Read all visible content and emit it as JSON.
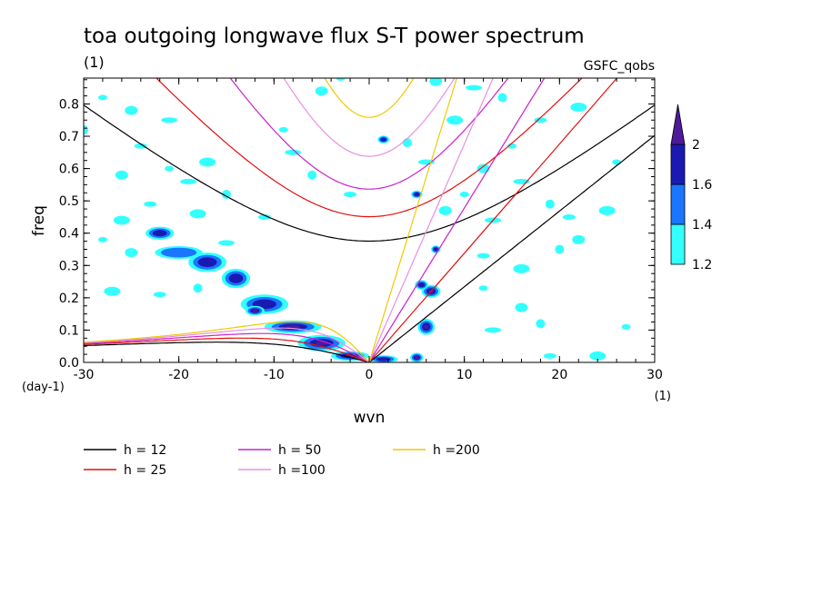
{
  "chart_data": {
    "type": "heatmap",
    "title": "toa outgoing longwave flux S-T power spectrum",
    "subtitle_left": "(1)",
    "subtitle_right": "GSFC_qobs",
    "xlabel": "wvn",
    "ylabel": "freq",
    "x_unit": "(1)",
    "y_unit": "(day-1)",
    "xlim": [
      -30,
      30
    ],
    "ylim": [
      0,
      0.88
    ],
    "x_ticks": [
      -30,
      -20,
      -10,
      0,
      10,
      20,
      30
    ],
    "y_ticks": [
      0.0,
      0.1,
      0.2,
      0.3,
      0.4,
      0.5,
      0.6,
      0.7,
      0.8
    ],
    "x_tick_labels": [
      "-30",
      "-20",
      "-10",
      "0",
      "10",
      "20",
      "30"
    ],
    "y_tick_labels": [
      "0.0",
      "0.1",
      "0.2",
      "0.3",
      "0.4",
      "0.5",
      "0.6",
      "0.7",
      "0.8"
    ],
    "colorbar": {
      "levels": [
        "1.2",
        "1.4",
        "1.6",
        "2"
      ],
      "colors": [
        "#33ffff",
        "#1a75ff",
        "#1a1ab3",
        "#4d1a99"
      ]
    },
    "dispersion_curves": [
      {
        "label": "h = 12",
        "h": 12,
        "color": "#000000"
      },
      {
        "label": "h = 25",
        "h": 25,
        "color": "#e01010"
      },
      {
        "label": "h = 50",
        "h": 50,
        "color": "#cc22cc"
      },
      {
        "label": "h =100",
        "h": 100,
        "color": "#e890e0"
      },
      {
        "label": "h =200",
        "h": 200,
        "color": "#f0c800"
      }
    ],
    "power_blobs": [
      {
        "x": -22,
        "y": 0.4,
        "rx": 1.5,
        "ry": 0.02,
        "level": 2
      },
      {
        "x": -20,
        "y": 0.34,
        "rx": 2.5,
        "ry": 0.02,
        "level": 1
      },
      {
        "x": -17,
        "y": 0.31,
        "rx": 2.0,
        "ry": 0.03,
        "level": 2
      },
      {
        "x": -14,
        "y": 0.26,
        "rx": 1.5,
        "ry": 0.03,
        "level": 2
      },
      {
        "x": -11,
        "y": 0.18,
        "rx": 2.5,
        "ry": 0.03,
        "level": 2
      },
      {
        "x": -12,
        "y": 0.16,
        "rx": 1.0,
        "ry": 0.015,
        "level": 3
      },
      {
        "x": -8,
        "y": 0.11,
        "rx": 3.0,
        "ry": 0.02,
        "level": 3
      },
      {
        "x": -5,
        "y": 0.06,
        "rx": 2.5,
        "ry": 0.025,
        "level": 3
      },
      {
        "x": -2,
        "y": 0.02,
        "rx": 2.0,
        "ry": 0.015,
        "level": 3
      },
      {
        "x": 1.5,
        "y": 0.01,
        "rx": 1.5,
        "ry": 0.012,
        "level": 2
      },
      {
        "x": 5,
        "y": 0.015,
        "rx": 0.7,
        "ry": 0.015,
        "level": 3
      },
      {
        "x": 6,
        "y": 0.11,
        "rx": 0.9,
        "ry": 0.025,
        "level": 3
      },
      {
        "x": 6.5,
        "y": 0.22,
        "rx": 1.0,
        "ry": 0.02,
        "level": 3
      },
      {
        "x": 5.5,
        "y": 0.24,
        "rx": 0.7,
        "ry": 0.015,
        "level": 2
      },
      {
        "x": 7,
        "y": 0.35,
        "rx": 0.5,
        "ry": 0.012,
        "level": 2
      },
      {
        "x": 5,
        "y": 0.52,
        "rx": 0.6,
        "ry": 0.012,
        "level": 2
      },
      {
        "x": 1.5,
        "y": 0.69,
        "rx": 0.6,
        "ry": 0.012,
        "level": 2
      }
    ],
    "scatter_patches": [
      [
        -28,
        0.82
      ],
      [
        -25,
        0.78
      ],
      [
        -21,
        0.75
      ],
      [
        -30,
        0.72
      ],
      [
        -24,
        0.67
      ],
      [
        -17,
        0.62
      ],
      [
        -21,
        0.6
      ],
      [
        -26,
        0.58
      ],
      [
        -19,
        0.56
      ],
      [
        -15,
        0.52
      ],
      [
        -23,
        0.49
      ],
      [
        -18,
        0.46
      ],
      [
        -9,
        0.72
      ],
      [
        -5,
        0.84
      ],
      [
        -8,
        0.65
      ],
      [
        -6,
        0.58
      ],
      [
        -11,
        0.45
      ],
      [
        -26,
        0.44
      ],
      [
        -28,
        0.38
      ],
      [
        -25,
        0.34
      ],
      [
        -15,
        0.37
      ],
      [
        -18,
        0.23
      ],
      [
        -22,
        0.21
      ],
      [
        -27,
        0.22
      ],
      [
        -3,
        0.88
      ],
      [
        7,
        0.87
      ],
      [
        11,
        0.85
      ],
      [
        14,
        0.82
      ],
      [
        18,
        0.75
      ],
      [
        22,
        0.79
      ],
      [
        15,
        0.67
      ],
      [
        12,
        0.6
      ],
      [
        16,
        0.56
      ],
      [
        19,
        0.49
      ],
      [
        21,
        0.45
      ],
      [
        25,
        0.47
      ],
      [
        10,
        0.52
      ],
      [
        8,
        0.47
      ],
      [
        13,
        0.44
      ],
      [
        20,
        0.35
      ],
      [
        12,
        0.33
      ],
      [
        16,
        0.29
      ],
      [
        12,
        0.23
      ],
      [
        16,
        0.17
      ],
      [
        13,
        0.1
      ],
      [
        18,
        0.12
      ],
      [
        19,
        0.02
      ],
      [
        24,
        0.02
      ],
      [
        27,
        0.11
      ],
      [
        22,
        0.38
      ],
      [
        6,
        0.62
      ],
      [
        4,
        0.68
      ],
      [
        -2,
        0.52
      ],
      [
        9,
        0.75
      ],
      [
        26,
        0.62
      ]
    ]
  },
  "legend": {
    "items": [
      "h = 12",
      "h = 25",
      "h = 50",
      "h =100",
      "h =200"
    ]
  }
}
